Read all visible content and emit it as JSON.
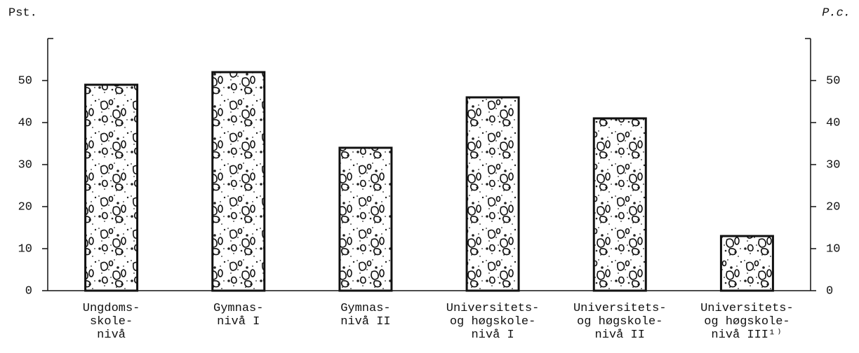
{
  "chart_data": {
    "type": "bar",
    "y_label": "Pst.",
    "y2_label": "P.c.",
    "categories": [
      "Ungdoms-\nskole-\nnivå",
      "Gymnas-\nnivå I",
      "Gymnas-\nnivå II",
      "Universitets-\nog høgskole-\nnivå I",
      "Universitets-\nog høgskole-\nnivå II",
      "Universitets-\nog høgskole-\nnivå III¹⁾"
    ],
    "values": [
      49,
      52,
      34,
      46,
      41,
      13
    ],
    "ylim": [
      0,
      60
    ],
    "yticks": [
      0,
      10,
      20,
      30,
      40,
      50
    ],
    "y2lim": [
      0,
      60
    ],
    "y2ticks": [
      0,
      10,
      20,
      30,
      40,
      50
    ],
    "grid": false
  }
}
